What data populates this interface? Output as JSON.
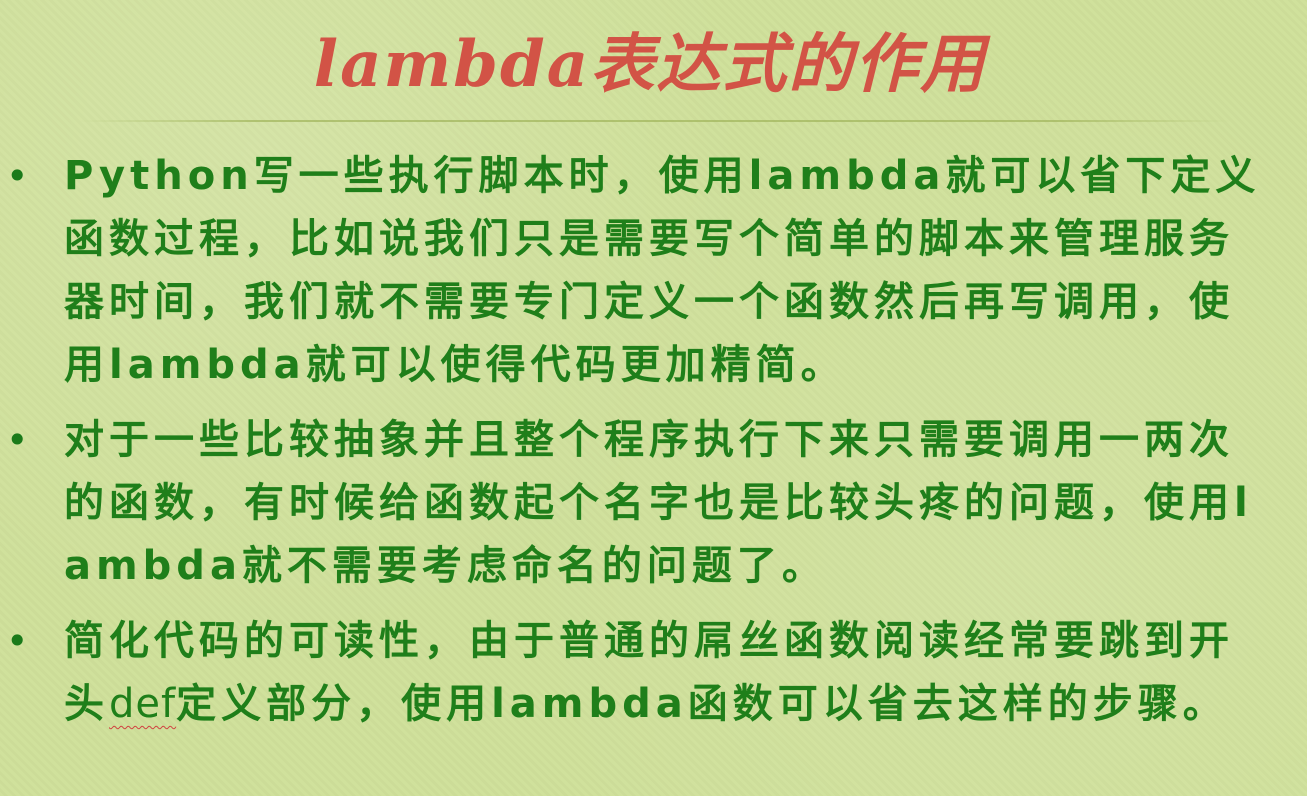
{
  "slide": {
    "title": "lambda表达式的作用",
    "bullets": [
      {
        "text": "Python写一些执行脚本时，使用lambda就可以省下定义函数过程，比如说我们只是需要写个简单的脚本来管理服务器时间，我们就不需要专门定义一个函数然后再写调用，使用lambda就可以使得代码更加精简。"
      },
      {
        "text": "对于一些比较抽象并且整个程序执行下来只需要调用一两次的函数，有时候给函数起个名字也是比较头疼的问题，使用lambda就不需要考虑命名的问题了。"
      },
      {
        "text_before": "简化代码的可读性，由于普通的屌丝函数阅读经常要跳到开头",
        "text_keyword": "def",
        "text_after": "定义部分，使用lambda函数可以省去这样的步骤。"
      }
    ],
    "bullet_symbol": "•"
  },
  "colors": {
    "background": "#cfe09a",
    "title": "#d25346",
    "body_text": "#1f7f1a"
  }
}
